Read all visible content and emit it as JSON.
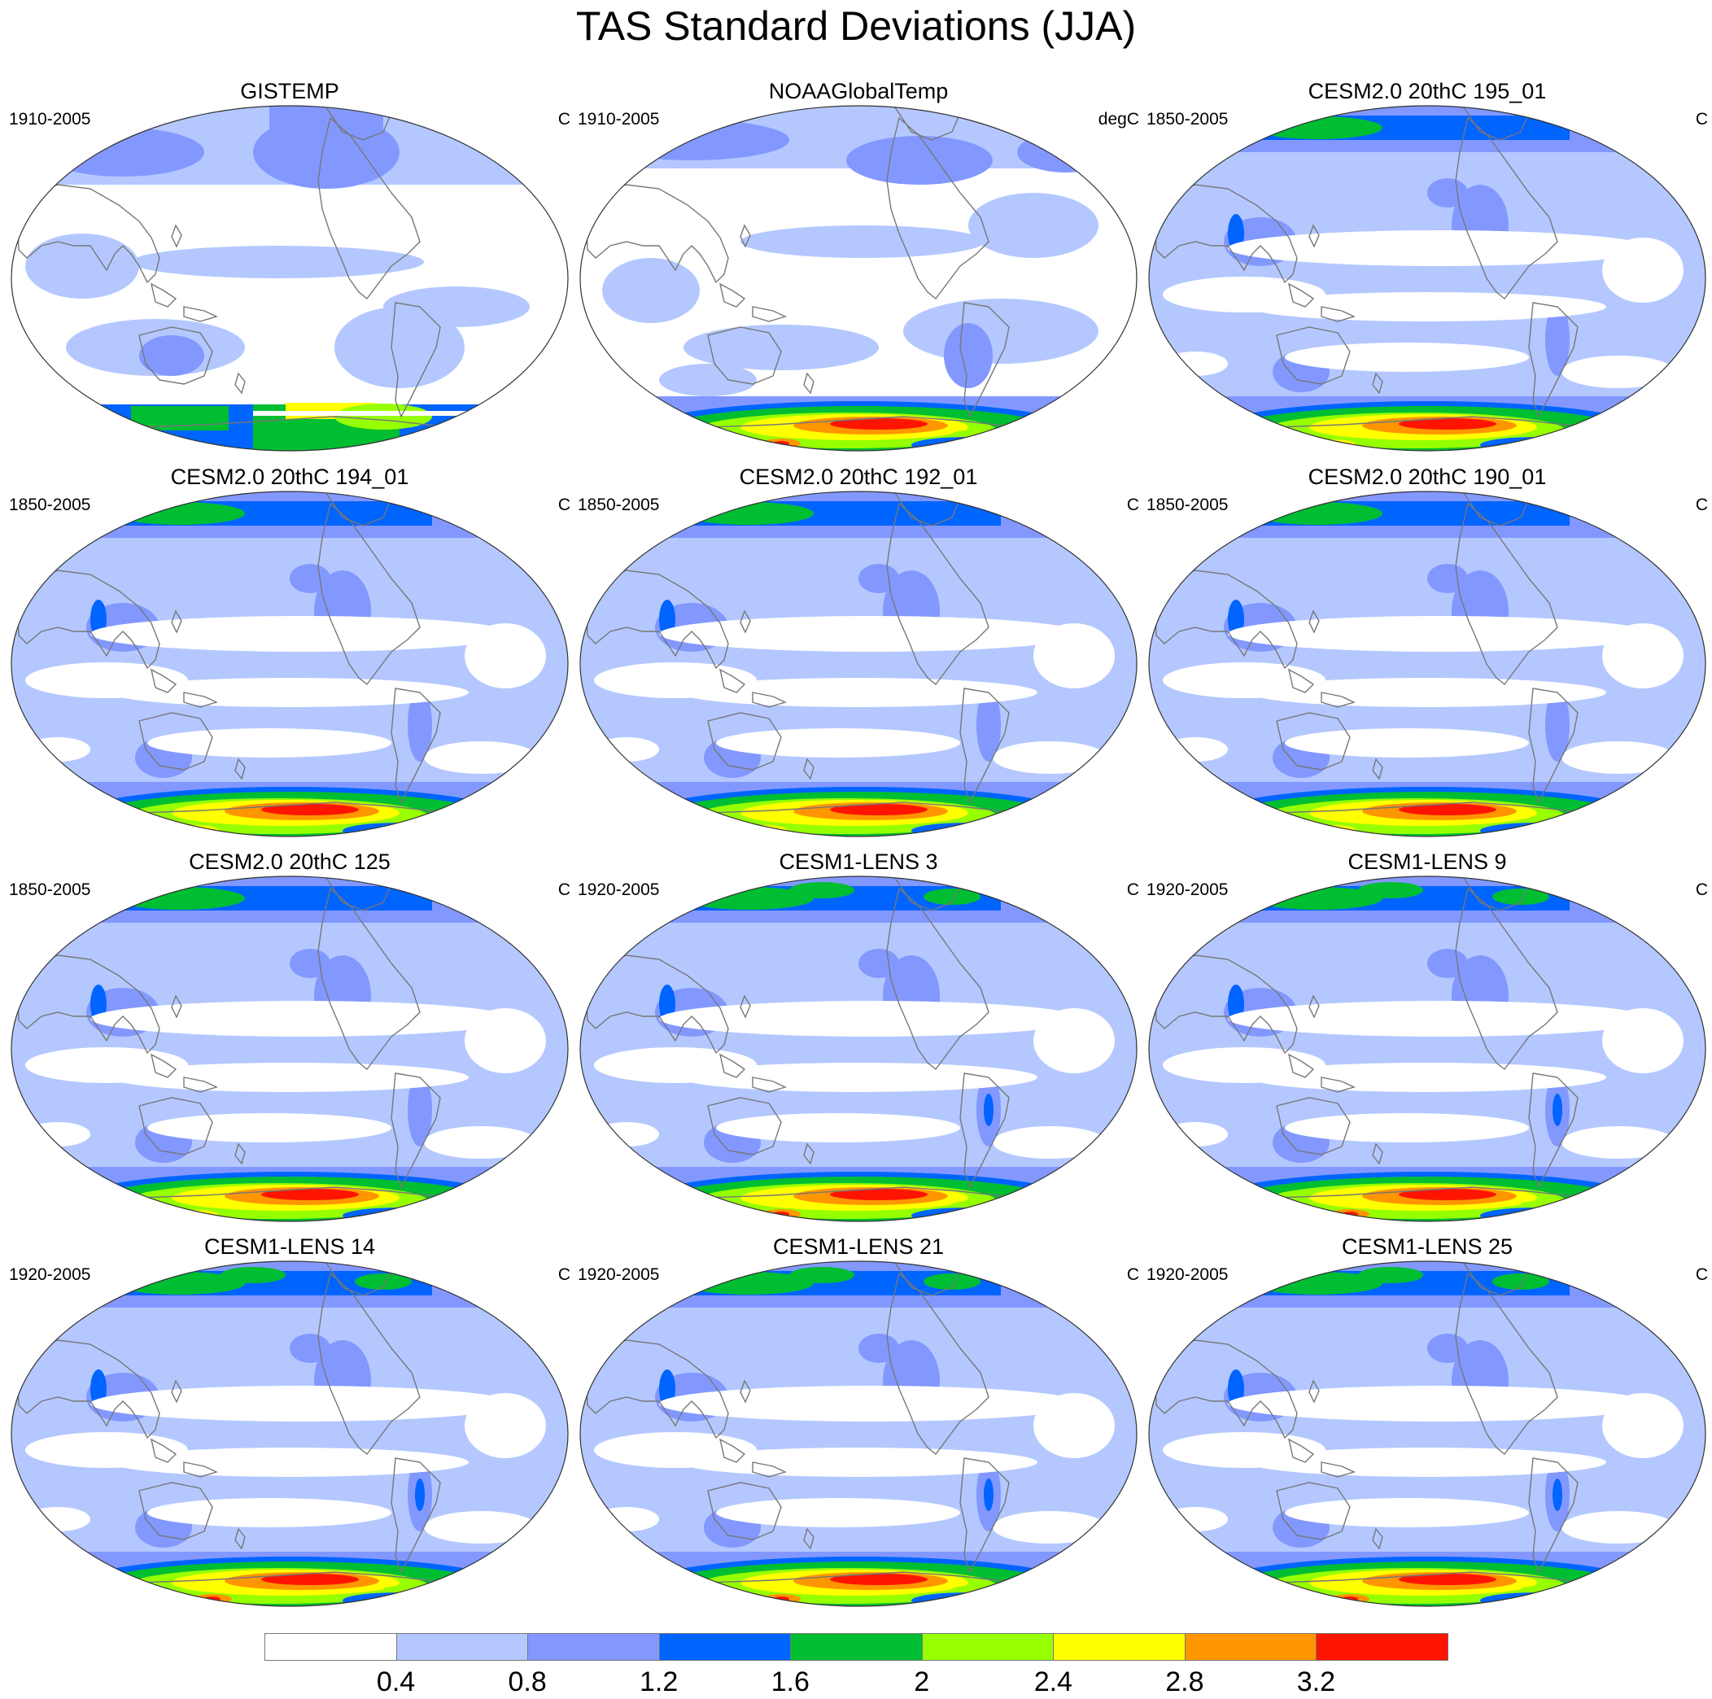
{
  "figure": {
    "title": "TAS Standard Deviations (JJA)"
  },
  "panels": [
    {
      "title": "GISTEMP",
      "period": "1910-2005",
      "units": "C",
      "style": "gistemp"
    },
    {
      "title": "NOAAGlobalTemp",
      "period": "1910-2005",
      "units": "degC",
      "style": "noaa"
    },
    {
      "title": "CESM2.0 20thC 195_01",
      "period": "1850-2005",
      "units": "C",
      "style": "model"
    },
    {
      "title": "CESM2.0 20thC 194_01",
      "period": "1850-2005",
      "units": "C",
      "style": "model"
    },
    {
      "title": "CESM2.0 20thC 192_01",
      "period": "1850-2005",
      "units": "C",
      "style": "model"
    },
    {
      "title": "CESM2.0 20thC 190_01",
      "period": "1850-2005",
      "units": "C",
      "style": "model"
    },
    {
      "title": "CESM2.0 20thC 125",
      "period": "1850-2005",
      "units": "C",
      "style": "model"
    },
    {
      "title": "CESM1-LENS 3",
      "period": "1920-2005",
      "units": "C",
      "style": "lens"
    },
    {
      "title": "CESM1-LENS 9",
      "period": "1920-2005",
      "units": "C",
      "style": "lens"
    },
    {
      "title": "CESM1-LENS 14",
      "period": "1920-2005",
      "units": "C",
      "style": "lens"
    },
    {
      "title": "CESM1-LENS 21",
      "period": "1920-2005",
      "units": "C",
      "style": "lens"
    },
    {
      "title": "CESM1-LENS 25",
      "period": "1920-2005",
      "units": "C",
      "style": "lens"
    }
  ],
  "colorbar": {
    "labels": [
      "0.4",
      "0.8",
      "1.2",
      "1.6",
      "2",
      "2.4",
      "2.8",
      "3.2"
    ],
    "colors": [
      "#ffffff",
      "#b4c8ff",
      "#8298ff",
      "#0064ff",
      "#00be32",
      "#96ff00",
      "#ffff00",
      "#ff9600",
      "#ff1400"
    ]
  }
}
